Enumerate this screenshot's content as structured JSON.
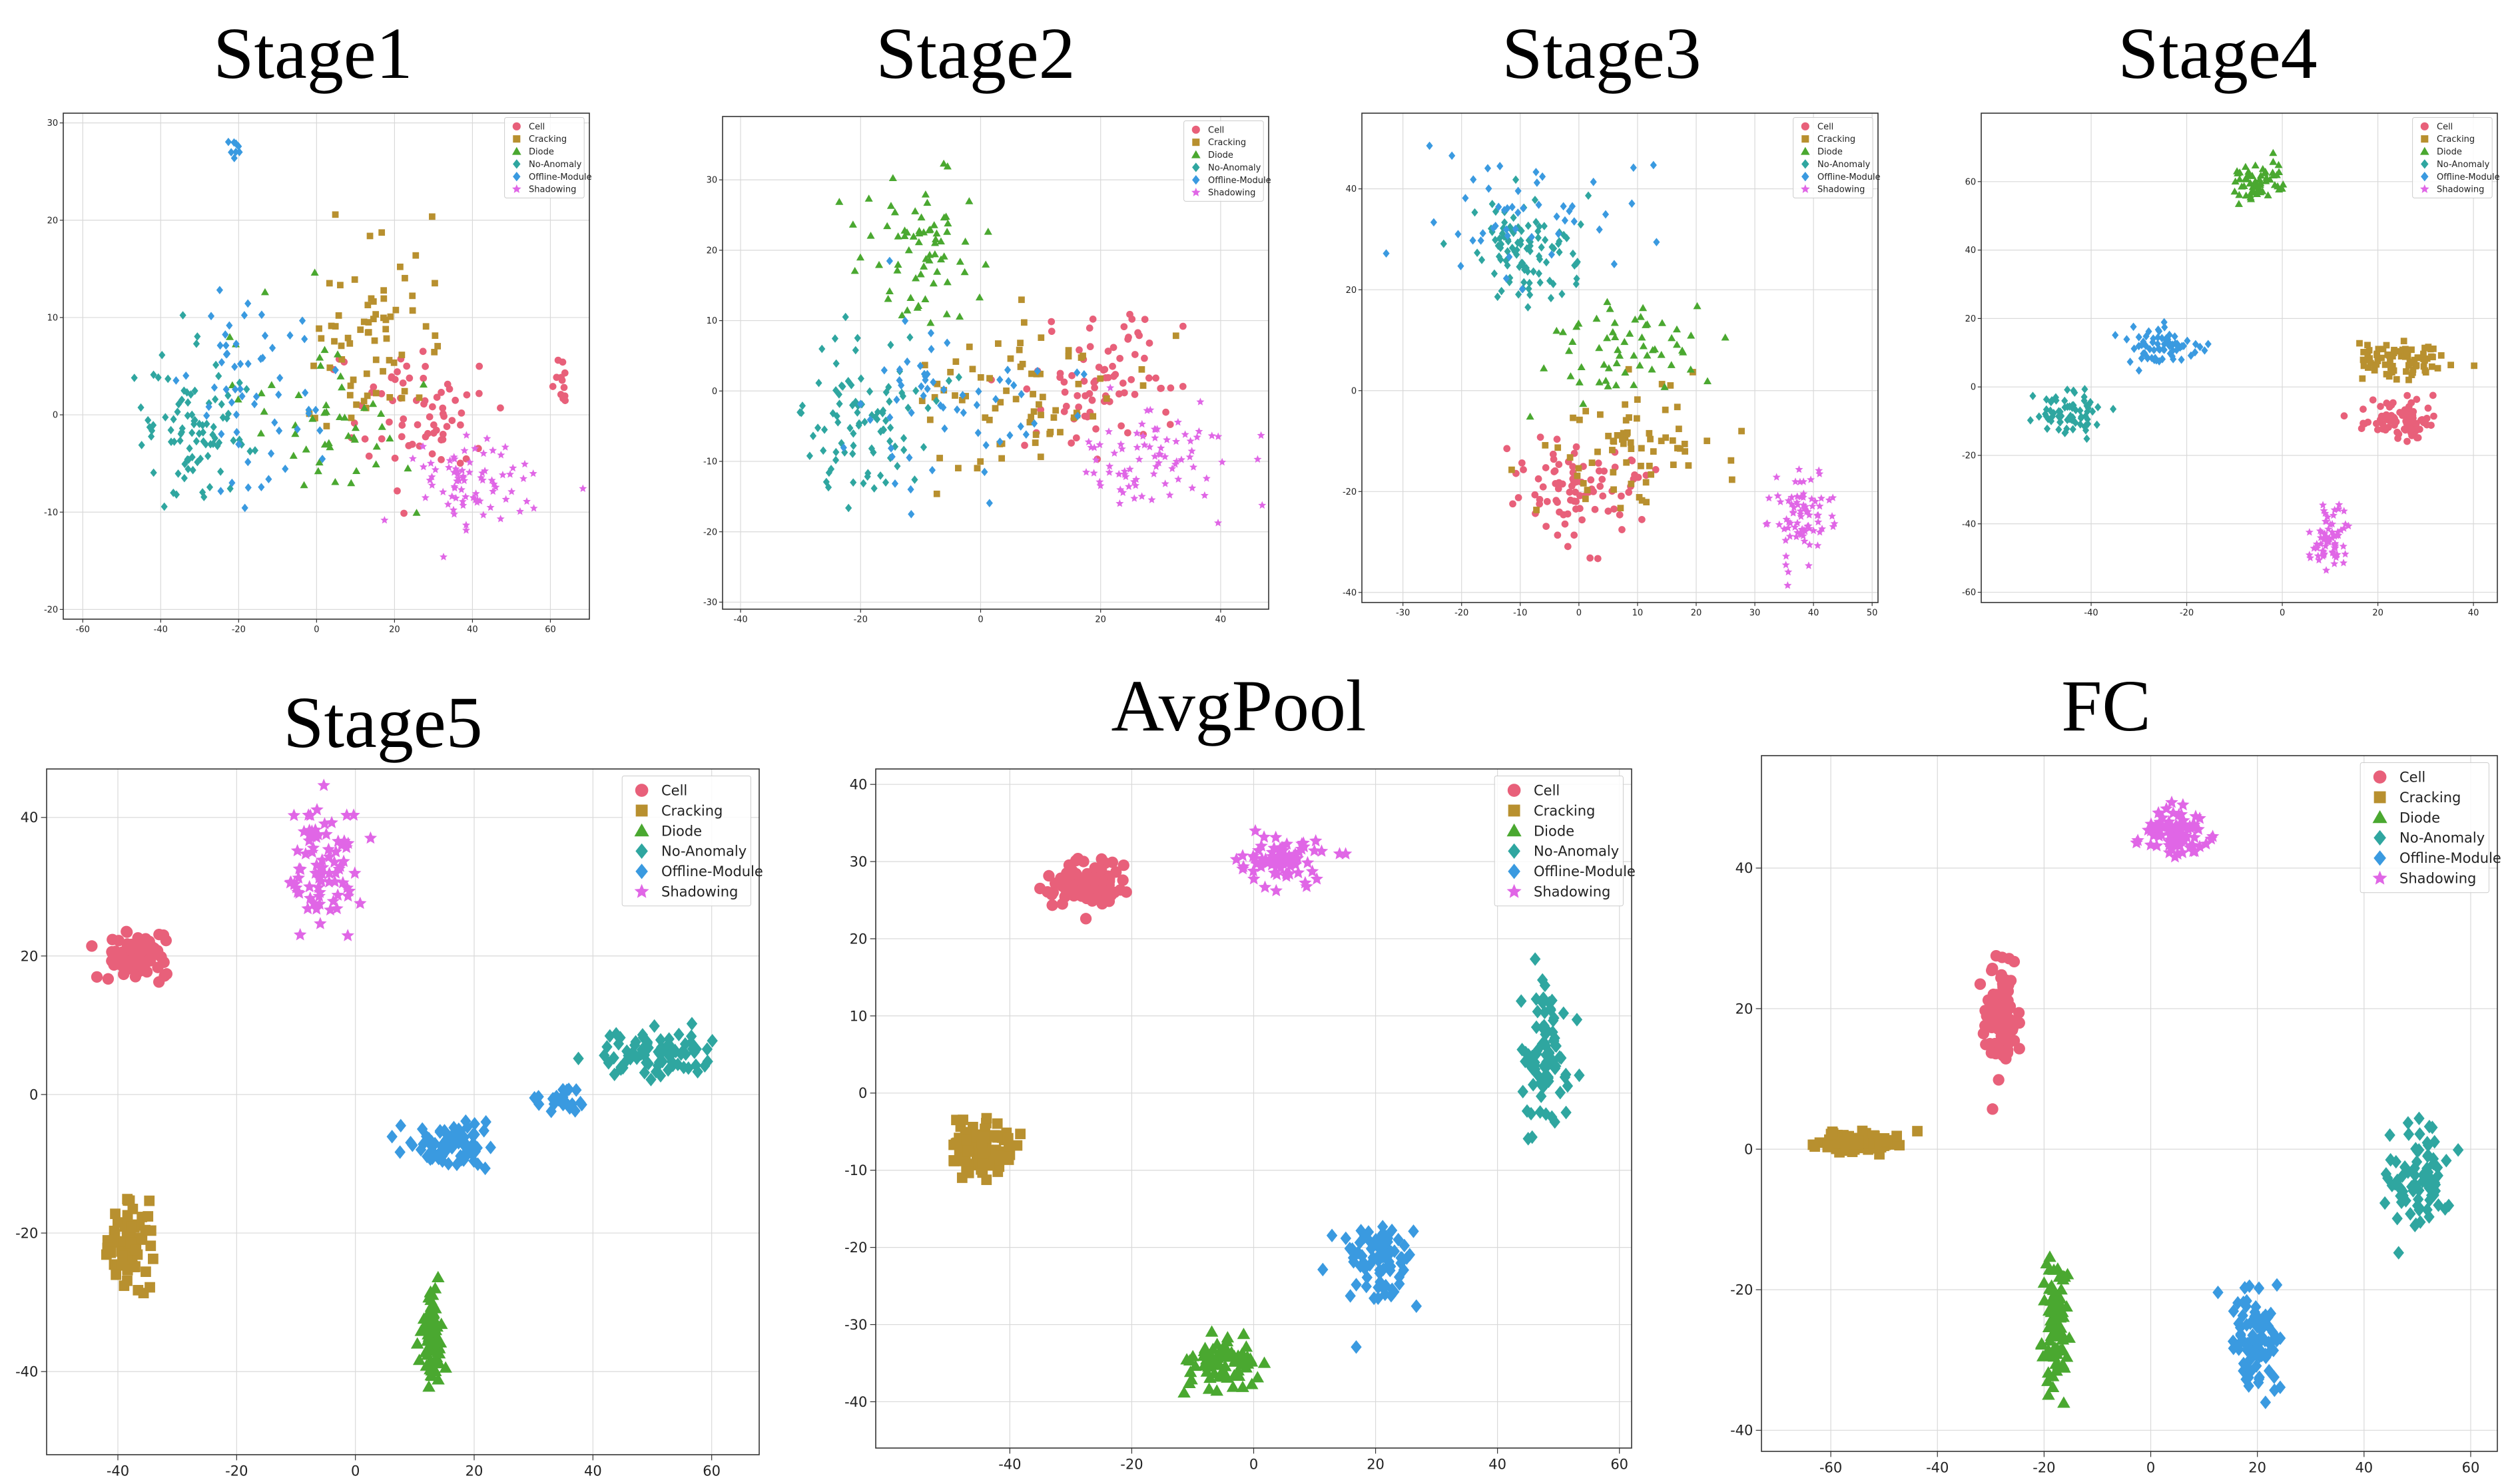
{
  "figure": {
    "legend_labels": [
      "Cell",
      "Cracking",
      "Diode",
      "No-Anomaly",
      "Offline-Module",
      "Shadowing"
    ],
    "colors": {
      "Cell": "#e8607a",
      "Cracking": "#b8902f",
      "Diode": "#4aa830",
      "No-Anomaly": "#2fa6a0",
      "Offline-Module": "#3a9ae0",
      "Shadowing": "#e066e6"
    },
    "markers": {
      "Cell": "circle",
      "Cracking": "square",
      "Diode": "triangle",
      "No-Anomaly": "diamond",
      "Offline-Module": "diamond",
      "Shadowing": "star"
    }
  },
  "chart_data": [
    {
      "type": "scatter",
      "title": "Stage1",
      "xlim": [
        -65,
        70
      ],
      "ylim": [
        -21,
        31
      ],
      "xticks": [
        -60,
        -40,
        -20,
        0,
        20,
        40,
        60
      ],
      "yticks": [
        -20,
        -10,
        0,
        10,
        20,
        30
      ],
      "clusters": [
        {
          "class": "Cell",
          "cx": 25,
          "cy": 0,
          "sx": 15,
          "sy": 7,
          "n": 70
        },
        {
          "class": "Cell",
          "cx": 63,
          "cy": 3,
          "sx": 2,
          "sy": 3,
          "n": 12
        },
        {
          "class": "Cracking",
          "cx": 15,
          "cy": 8,
          "sx": 15,
          "sy": 9,
          "n": 70
        },
        {
          "class": "Diode",
          "cx": 0,
          "cy": 0,
          "sx": 20,
          "sy": 9,
          "n": 50
        },
        {
          "class": "No-Anomaly",
          "cx": -32,
          "cy": -2,
          "sx": 12,
          "sy": 7,
          "n": 90
        },
        {
          "class": "Offline-Module",
          "cx": -18,
          "cy": 3,
          "sx": 22,
          "sy": 9,
          "n": 60
        },
        {
          "class": "Offline-Module",
          "cx": -21,
          "cy": 27,
          "sx": 2,
          "sy": 1,
          "n": 8
        },
        {
          "class": "Shadowing",
          "cx": 40,
          "cy": -7,
          "sx": 14,
          "sy": 4,
          "n": 80
        }
      ]
    },
    {
      "type": "scatter",
      "title": "Stage2",
      "xlim": [
        -43,
        48
      ],
      "ylim": [
        -31,
        39
      ],
      "xticks": [
        -40,
        -20,
        0,
        20,
        40
      ],
      "yticks": [
        -30,
        -20,
        -10,
        0,
        10,
        20,
        30
      ],
      "clusters": [
        {
          "class": "Cell",
          "cx": 20,
          "cy": 0,
          "sx": 12,
          "sy": 9,
          "n": 80
        },
        {
          "class": "Cracking",
          "cx": 5,
          "cy": 0,
          "sx": 18,
          "sy": 12,
          "n": 70
        },
        {
          "class": "Diode",
          "cx": -10,
          "cy": 20,
          "sx": 10,
          "sy": 10,
          "n": 70
        },
        {
          "class": "No-Anomaly",
          "cx": -20,
          "cy": -3,
          "sx": 10,
          "sy": 10,
          "n": 90
        },
        {
          "class": "Offline-Module",
          "cx": -8,
          "cy": -2,
          "sx": 18,
          "sy": 12,
          "n": 60
        },
        {
          "class": "Shadowing",
          "cx": 28,
          "cy": -10,
          "sx": 13,
          "sy": 6,
          "n": 80
        }
      ]
    },
    {
      "type": "scatter",
      "title": "Stage3",
      "xlim": [
        -37,
        51
      ],
      "ylim": [
        -42,
        55
      ],
      "xticks": [
        -30,
        -20,
        -10,
        0,
        10,
        20,
        30,
        40,
        50
      ],
      "yticks": [
        -40,
        -20,
        0,
        20,
        40
      ],
      "clusters": [
        {
          "class": "Cell",
          "cx": 0,
          "cy": -20,
          "sx": 10,
          "sy": 10,
          "n": 90
        },
        {
          "class": "Cracking",
          "cx": 10,
          "cy": -10,
          "sx": 13,
          "sy": 14,
          "n": 70
        },
        {
          "class": "Diode",
          "cx": 8,
          "cy": 8,
          "sx": 14,
          "sy": 10,
          "n": 60
        },
        {
          "class": "No-Anomaly",
          "cx": -10,
          "cy": 28,
          "sx": 8,
          "sy": 9,
          "n": 100
        },
        {
          "class": "Offline-Module",
          "cx": -10,
          "cy": 35,
          "sx": 14,
          "sy": 12,
          "n": 50
        },
        {
          "class": "Shadowing",
          "cx": 38,
          "cy": -25,
          "sx": 5,
          "sy": 8,
          "n": 80
        }
      ]
    },
    {
      "type": "scatter",
      "title": "Stage4",
      "xlim": [
        -63,
        45
      ],
      "ylim": [
        -63,
        80
      ],
      "xticks": [
        -40,
        -20,
        0,
        20,
        40
      ],
      "yticks": [
        -60,
        -40,
        -20,
        0,
        20,
        40,
        60
      ],
      "clusters": [
        {
          "class": "Cell",
          "cx": 25,
          "cy": -10,
          "sx": 8,
          "sy": 5,
          "n": 80
        },
        {
          "class": "Cracking",
          "cx": 25,
          "cy": 8,
          "sx": 8,
          "sy": 5,
          "n": 80
        },
        {
          "class": "Diode",
          "cx": -5,
          "cy": 60,
          "sx": 5,
          "sy": 5,
          "n": 60
        },
        {
          "class": "No-Anomaly",
          "cx": -45,
          "cy": -8,
          "sx": 6,
          "sy": 6,
          "n": 70
        },
        {
          "class": "Offline-Module",
          "cx": -25,
          "cy": 12,
          "sx": 8,
          "sy": 6,
          "n": 70
        },
        {
          "class": "Shadowing",
          "cx": 10,
          "cy": -45,
          "sx": 4,
          "sy": 9,
          "n": 70
        }
      ]
    },
    {
      "type": "scatter",
      "title": "Stage5",
      "xlim": [
        -52,
        68
      ],
      "ylim": [
        -52,
        47
      ],
      "xticks": [
        -40,
        -20,
        0,
        20,
        40,
        60
      ],
      "yticks": [
        -40,
        -20,
        0,
        20,
        40
      ],
      "clusters": [
        {
          "class": "Cell",
          "cx": -37,
          "cy": 20,
          "sx": 5,
          "sy": 3,
          "n": 90
        },
        {
          "class": "Cracking",
          "cx": -38,
          "cy": -22,
          "sx": 3,
          "sy": 6,
          "n": 70
        },
        {
          "class": "Diode",
          "cx": 13,
          "cy": -35,
          "sx": 1.5,
          "sy": 7,
          "n": 70
        },
        {
          "class": "No-Anomaly",
          "cx": 50,
          "cy": 6,
          "sx": 8,
          "sy": 3,
          "n": 80
        },
        {
          "class": "Offline-Module",
          "cx": 15,
          "cy": -7,
          "sx": 8,
          "sy": 3,
          "n": 70
        },
        {
          "class": "Offline-Module",
          "cx": 35,
          "cy": -1,
          "sx": 4,
          "sy": 1.5,
          "n": 25
        },
        {
          "class": "Shadowing",
          "cx": -5,
          "cy": 32,
          "sx": 6,
          "sy": 8,
          "n": 80
        }
      ]
    },
    {
      "type": "scatter",
      "title": "AvgPool",
      "xlim": [
        -62,
        62
      ],
      "ylim": [
        -46,
        42
      ],
      "xticks": [
        -40,
        -20,
        0,
        20,
        40,
        60
      ],
      "yticks": [
        -40,
        -30,
        -20,
        -10,
        0,
        10,
        20,
        30,
        40
      ],
      "clusters": [
        {
          "class": "Cell",
          "cx": -27,
          "cy": 27,
          "sx": 6,
          "sy": 3,
          "n": 90
        },
        {
          "class": "Cracking",
          "cx": -45,
          "cy": -7,
          "sx": 5,
          "sy": 3,
          "n": 90
        },
        {
          "class": "Diode",
          "cx": -5,
          "cy": -35,
          "sx": 6,
          "sy": 3,
          "n": 80
        },
        {
          "class": "No-Anomaly",
          "cx": 48,
          "cy": 5,
          "sx": 4,
          "sy": 8,
          "n": 90
        },
        {
          "class": "Offline-Module",
          "cx": 20,
          "cy": -22,
          "sx": 6,
          "sy": 5,
          "n": 80
        },
        {
          "class": "Shadowing",
          "cx": 5,
          "cy": 30,
          "sx": 7,
          "sy": 3,
          "n": 80
        }
      ]
    },
    {
      "type": "scatter",
      "title": "FC",
      "xlim": [
        -73,
        65
      ],
      "ylim": [
        -43,
        56
      ],
      "xticks": [
        -60,
        -40,
        -20,
        0,
        20,
        40,
        60
      ],
      "yticks": [
        -40,
        -20,
        0,
        20,
        40
      ],
      "clusters": [
        {
          "class": "Cell",
          "cx": -28,
          "cy": 18,
          "sx": 3,
          "sy": 7,
          "n": 90
        },
        {
          "class": "Cracking",
          "cx": -55,
          "cy": 1,
          "sx": 8,
          "sy": 1.5,
          "n": 90
        },
        {
          "class": "Diode",
          "cx": -18,
          "cy": -25,
          "sx": 2,
          "sy": 8,
          "n": 90
        },
        {
          "class": "No-Anomaly",
          "cx": 50,
          "cy": -4,
          "sx": 5,
          "sy": 6,
          "n": 80
        },
        {
          "class": "Offline-Module",
          "cx": 20,
          "cy": -28,
          "sx": 4,
          "sy": 6,
          "n": 90
        },
        {
          "class": "Shadowing",
          "cx": 5,
          "cy": 45,
          "sx": 5,
          "sy": 3,
          "n": 90
        }
      ]
    }
  ]
}
